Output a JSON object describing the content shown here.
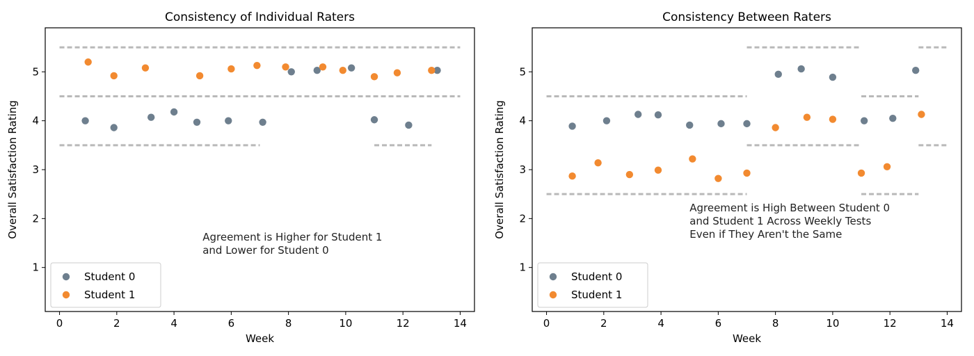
{
  "colors": {
    "student0": "#6e7f8e",
    "student1": "#f28a30",
    "band": "#b9b9b9"
  },
  "chart_data": [
    {
      "type": "scatter",
      "title": "Consistency of Individual Raters",
      "xlabel": "Week",
      "ylabel": "Overall Satisfaction Rating",
      "xlim": [
        -0.5,
        14.5
      ],
      "ylim": [
        0.1,
        5.9
      ],
      "xticks": [
        "0",
        "2",
        "4",
        "6",
        "8",
        "10",
        "12",
        "14"
      ],
      "yticks": [
        "1",
        "2",
        "3",
        "4",
        "5"
      ],
      "grid": false,
      "legend_position": "lower left",
      "annotation": [
        "Agreement is Higher for Student 1",
        "and Lower for Student 0"
      ],
      "series": [
        {
          "name": "Student 0",
          "color": "#6e7f8e",
          "x": [
            0.9,
            1.9,
            3.2,
            4.0,
            4.8,
            5.9,
            7.1,
            8.1,
            9.0,
            10.2,
            11.0,
            12.2,
            13.2
          ],
          "y": [
            4.0,
            3.86,
            4.07,
            4.18,
            3.97,
            4.0,
            3.97,
            5.0,
            5.03,
            5.08,
            4.02,
            3.91,
            5.03
          ]
        },
        {
          "name": "Student 1",
          "color": "#f28a30",
          "x": [
            1.0,
            1.9,
            3.0,
            4.9,
            6.0,
            6.9,
            7.9,
            9.2,
            9.9,
            11.0,
            11.8,
            13.0
          ],
          "y": [
            5.2,
            4.92,
            5.08,
            4.92,
            5.06,
            5.13,
            5.1,
            5.1,
            5.03,
            4.9,
            4.98,
            5.03
          ]
        }
      ],
      "dashed_bands": [
        {
          "y": 5.5,
          "x": [
            0,
            14
          ]
        },
        {
          "y": 4.5,
          "x": [
            0,
            14
          ]
        },
        {
          "y": 3.5,
          "x": [
            0,
            7.0
          ]
        },
        {
          "y": 3.5,
          "x": [
            11.0,
            13.0
          ]
        }
      ]
    },
    {
      "type": "scatter",
      "title": "Consistency Between Raters",
      "xlabel": "Week",
      "ylabel": "Overall Satisfaction Rating",
      "xlim": [
        -0.5,
        14.5
      ],
      "ylim": [
        0.1,
        5.9
      ],
      "xticks": [
        "0",
        "2",
        "4",
        "6",
        "8",
        "10",
        "12",
        "14"
      ],
      "yticks": [
        "1",
        "2",
        "3",
        "4",
        "5"
      ],
      "grid": false,
      "legend_position": "lower left",
      "annotation": [
        "Agreement is High Between Student 0",
        "and Student 1 Across Weekly Tests",
        "Even if They Aren't the Same"
      ],
      "series": [
        {
          "name": "Student 0",
          "color": "#6e7f8e",
          "x": [
            0.9,
            2.1,
            3.2,
            3.9,
            5.0,
            6.1,
            7.0,
            8.1,
            8.9,
            10.0,
            11.1,
            12.1,
            12.9
          ],
          "y": [
            3.89,
            4.0,
            4.13,
            4.12,
            3.91,
            3.94,
            3.94,
            4.95,
            5.06,
            4.89,
            4.0,
            4.05,
            5.03
          ]
        },
        {
          "name": "Student 1",
          "color": "#f28a30",
          "x": [
            0.9,
            1.8,
            2.9,
            3.9,
            5.1,
            6.0,
            7.0,
            8.0,
            9.1,
            10.0,
            11.0,
            11.9,
            13.1
          ],
          "y": [
            2.87,
            3.14,
            2.9,
            2.99,
            3.22,
            2.82,
            2.93,
            3.86,
            4.07,
            4.03,
            2.93,
            3.06,
            4.13
          ]
        }
      ],
      "dashed_bands": [
        {
          "y": 4.5,
          "x": [
            0,
            7.0
          ]
        },
        {
          "y": 2.5,
          "x": [
            0,
            7.0
          ]
        },
        {
          "y": 5.5,
          "x": [
            7.0,
            11.0
          ]
        },
        {
          "y": 3.5,
          "x": [
            7.0,
            11.0
          ]
        },
        {
          "y": 4.5,
          "x": [
            11.0,
            13.0
          ]
        },
        {
          "y": 2.5,
          "x": [
            11.0,
            13.0
          ]
        },
        {
          "y": 5.5,
          "x": [
            13.0,
            14.0
          ]
        },
        {
          "y": 3.5,
          "x": [
            13.0,
            14.0
          ]
        }
      ]
    }
  ]
}
